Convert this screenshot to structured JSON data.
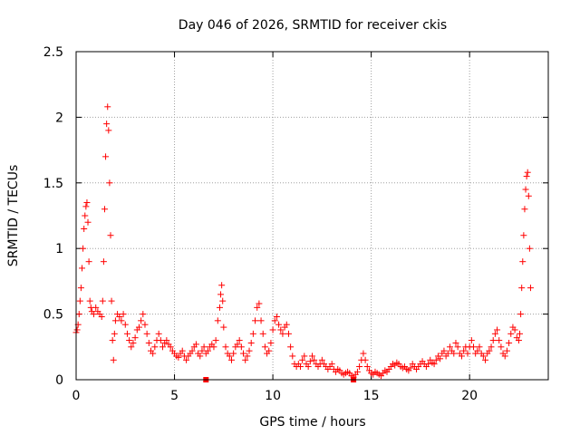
{
  "chart_data": {
    "type": "scatter",
    "title": "Day 046 of 2026, SRMTID for receiver ckis",
    "xlabel": "GPS time / hours",
    "ylabel": "SRMTID / TECUs",
    "xlim": [
      0,
      24
    ],
    "ylim": [
      0,
      2.5
    ],
    "xticks": [
      0,
      5,
      10,
      15,
      20
    ],
    "yticks": [
      0,
      0.5,
      1,
      1.5,
      2,
      2.5
    ],
    "xtick_labels": [
      "0",
      "5",
      "10",
      "15",
      "20"
    ],
    "ytick_labels": [
      "0",
      "0.5",
      "1",
      "1.5",
      "2",
      "2.5"
    ],
    "grid": true,
    "marker": "plus",
    "color": "#ff0000",
    "series": [
      {
        "name": "SRMTID",
        "points": [
          [
            0.0,
            0.36
          ],
          [
            0.05,
            0.38
          ],
          [
            0.1,
            0.42
          ],
          [
            0.15,
            0.5
          ],
          [
            0.2,
            0.6
          ],
          [
            0.25,
            0.7
          ],
          [
            0.3,
            0.85
          ],
          [
            0.35,
            1.0
          ],
          [
            0.4,
            1.15
          ],
          [
            0.45,
            1.25
          ],
          [
            0.5,
            1.32
          ],
          [
            0.55,
            1.35
          ],
          [
            0.6,
            1.2
          ],
          [
            0.65,
            0.9
          ],
          [
            0.7,
            0.6
          ],
          [
            0.75,
            0.55
          ],
          [
            0.8,
            0.52
          ],
          [
            0.9,
            0.5
          ],
          [
            1.0,
            0.55
          ],
          [
            1.1,
            0.52
          ],
          [
            1.2,
            0.5
          ],
          [
            1.3,
            0.48
          ],
          [
            1.35,
            0.6
          ],
          [
            1.4,
            0.9
          ],
          [
            1.45,
            1.3
          ],
          [
            1.5,
            1.7
          ],
          [
            1.55,
            1.95
          ],
          [
            1.6,
            2.08
          ],
          [
            1.65,
            1.9
          ],
          [
            1.7,
            1.5
          ],
          [
            1.75,
            1.1
          ],
          [
            1.8,
            0.6
          ],
          [
            1.85,
            0.3
          ],
          [
            1.9,
            0.15
          ],
          [
            1.95,
            0.35
          ],
          [
            2.0,
            0.45
          ],
          [
            2.1,
            0.5
          ],
          [
            2.2,
            0.48
          ],
          [
            2.3,
            0.45
          ],
          [
            2.4,
            0.5
          ],
          [
            2.5,
            0.42
          ],
          [
            2.6,
            0.35
          ],
          [
            2.7,
            0.3
          ],
          [
            2.8,
            0.25
          ],
          [
            2.9,
            0.28
          ],
          [
            3.0,
            0.32
          ],
          [
            3.1,
            0.38
          ],
          [
            3.2,
            0.4
          ],
          [
            3.3,
            0.45
          ],
          [
            3.4,
            0.5
          ],
          [
            3.5,
            0.42
          ],
          [
            3.6,
            0.35
          ],
          [
            3.7,
            0.28
          ],
          [
            3.8,
            0.22
          ],
          [
            3.9,
            0.2
          ],
          [
            4.0,
            0.25
          ],
          [
            4.1,
            0.3
          ],
          [
            4.2,
            0.35
          ],
          [
            4.3,
            0.3
          ],
          [
            4.4,
            0.25
          ],
          [
            4.5,
            0.28
          ],
          [
            4.6,
            0.3
          ],
          [
            4.7,
            0.27
          ],
          [
            4.8,
            0.25
          ],
          [
            4.9,
            0.22
          ],
          [
            5.0,
            0.2
          ],
          [
            5.1,
            0.18
          ],
          [
            5.2,
            0.17
          ],
          [
            5.3,
            0.2
          ],
          [
            5.4,
            0.22
          ],
          [
            5.5,
            0.18
          ],
          [
            5.6,
            0.15
          ],
          [
            5.7,
            0.18
          ],
          [
            5.8,
            0.2
          ],
          [
            5.9,
            0.22
          ],
          [
            6.0,
            0.25
          ],
          [
            6.1,
            0.27
          ],
          [
            6.2,
            0.2
          ],
          [
            6.3,
            0.18
          ],
          [
            6.4,
            0.22
          ],
          [
            6.5,
            0.25
          ],
          [
            6.6,
            0.2
          ],
          [
            6.7,
            0.22
          ],
          [
            6.8,
            0.25
          ],
          [
            6.9,
            0.27
          ],
          [
            7.0,
            0.25
          ],
          [
            7.1,
            0.3
          ],
          [
            7.2,
            0.45
          ],
          [
            7.3,
            0.55
          ],
          [
            7.35,
            0.65
          ],
          [
            7.4,
            0.72
          ],
          [
            7.45,
            0.6
          ],
          [
            7.5,
            0.4
          ],
          [
            7.6,
            0.25
          ],
          [
            7.7,
            0.2
          ],
          [
            7.8,
            0.18
          ],
          [
            7.9,
            0.15
          ],
          [
            8.0,
            0.2
          ],
          [
            8.1,
            0.25
          ],
          [
            8.2,
            0.27
          ],
          [
            8.3,
            0.3
          ],
          [
            8.4,
            0.25
          ],
          [
            8.5,
            0.2
          ],
          [
            8.6,
            0.15
          ],
          [
            8.7,
            0.18
          ],
          [
            8.8,
            0.22
          ],
          [
            8.9,
            0.28
          ],
          [
            9.0,
            0.35
          ],
          [
            9.1,
            0.45
          ],
          [
            9.2,
            0.55
          ],
          [
            9.3,
            0.58
          ],
          [
            9.4,
            0.45
          ],
          [
            9.5,
            0.35
          ],
          [
            9.6,
            0.25
          ],
          [
            9.7,
            0.2
          ],
          [
            9.8,
            0.22
          ],
          [
            9.9,
            0.28
          ],
          [
            10.0,
            0.38
          ],
          [
            10.1,
            0.45
          ],
          [
            10.2,
            0.48
          ],
          [
            10.3,
            0.42
          ],
          [
            10.4,
            0.38
          ],
          [
            10.5,
            0.35
          ],
          [
            10.6,
            0.4
          ],
          [
            10.7,
            0.42
          ],
          [
            10.8,
            0.35
          ],
          [
            10.9,
            0.25
          ],
          [
            11.0,
            0.18
          ],
          [
            11.1,
            0.12
          ],
          [
            11.2,
            0.1
          ],
          [
            11.3,
            0.12
          ],
          [
            11.4,
            0.1
          ],
          [
            11.5,
            0.15
          ],
          [
            11.6,
            0.18
          ],
          [
            11.7,
            0.12
          ],
          [
            11.8,
            0.1
          ],
          [
            11.9,
            0.14
          ],
          [
            12.0,
            0.18
          ],
          [
            12.1,
            0.15
          ],
          [
            12.2,
            0.12
          ],
          [
            12.3,
            0.1
          ],
          [
            12.4,
            0.12
          ],
          [
            12.5,
            0.15
          ],
          [
            12.6,
            0.12
          ],
          [
            12.7,
            0.1
          ],
          [
            12.8,
            0.08
          ],
          [
            12.9,
            0.1
          ],
          [
            13.0,
            0.12
          ],
          [
            13.1,
            0.08
          ],
          [
            13.2,
            0.06
          ],
          [
            13.3,
            0.08
          ],
          [
            13.4,
            0.07
          ],
          [
            13.5,
            0.05
          ],
          [
            13.6,
            0.04
          ],
          [
            13.7,
            0.05
          ],
          [
            13.8,
            0.06
          ],
          [
            13.9,
            0.05
          ],
          [
            14.0,
            0.03
          ],
          [
            14.1,
            0.02
          ],
          [
            14.2,
            0.04
          ],
          [
            14.3,
            0.06
          ],
          [
            14.4,
            0.1
          ],
          [
            14.5,
            0.15
          ],
          [
            14.6,
            0.2
          ],
          [
            14.7,
            0.15
          ],
          [
            14.8,
            0.1
          ],
          [
            14.9,
            0.07
          ],
          [
            15.0,
            0.05
          ],
          [
            15.1,
            0.04
          ],
          [
            15.2,
            0.06
          ],
          [
            15.3,
            0.05
          ],
          [
            15.4,
            0.04
          ],
          [
            15.5,
            0.03
          ],
          [
            15.6,
            0.05
          ],
          [
            15.7,
            0.07
          ],
          [
            15.8,
            0.06
          ],
          [
            15.9,
            0.08
          ],
          [
            16.0,
            0.1
          ],
          [
            16.1,
            0.12
          ],
          [
            16.2,
            0.11
          ],
          [
            16.3,
            0.13
          ],
          [
            16.4,
            0.12
          ],
          [
            16.5,
            0.1
          ],
          [
            16.6,
            0.09
          ],
          [
            16.7,
            0.1
          ],
          [
            16.8,
            0.08
          ],
          [
            16.9,
            0.07
          ],
          [
            17.0,
            0.09
          ],
          [
            17.1,
            0.12
          ],
          [
            17.2,
            0.1
          ],
          [
            17.3,
            0.08
          ],
          [
            17.4,
            0.1
          ],
          [
            17.5,
            0.12
          ],
          [
            17.6,
            0.14
          ],
          [
            17.7,
            0.12
          ],
          [
            17.8,
            0.1
          ],
          [
            17.9,
            0.12
          ],
          [
            18.0,
            0.15
          ],
          [
            18.1,
            0.13
          ],
          [
            18.2,
            0.12
          ],
          [
            18.3,
            0.15
          ],
          [
            18.4,
            0.18
          ],
          [
            18.5,
            0.16
          ],
          [
            18.6,
            0.2
          ],
          [
            18.7,
            0.22
          ],
          [
            18.8,
            0.18
          ],
          [
            18.9,
            0.2
          ],
          [
            19.0,
            0.25
          ],
          [
            19.1,
            0.22
          ],
          [
            19.2,
            0.2
          ],
          [
            19.3,
            0.28
          ],
          [
            19.4,
            0.25
          ],
          [
            19.5,
            0.2
          ],
          [
            19.6,
            0.18
          ],
          [
            19.7,
            0.22
          ],
          [
            19.8,
            0.25
          ],
          [
            19.9,
            0.2
          ],
          [
            20.0,
            0.25
          ],
          [
            20.1,
            0.3
          ],
          [
            20.2,
            0.25
          ],
          [
            20.3,
            0.2
          ],
          [
            20.4,
            0.22
          ],
          [
            20.5,
            0.25
          ],
          [
            20.6,
            0.2
          ],
          [
            20.7,
            0.18
          ],
          [
            20.8,
            0.15
          ],
          [
            20.9,
            0.2
          ],
          [
            21.0,
            0.22
          ],
          [
            21.1,
            0.25
          ],
          [
            21.2,
            0.3
          ],
          [
            21.3,
            0.35
          ],
          [
            21.4,
            0.38
          ],
          [
            21.5,
            0.3
          ],
          [
            21.6,
            0.25
          ],
          [
            21.7,
            0.2
          ],
          [
            21.8,
            0.18
          ],
          [
            21.9,
            0.22
          ],
          [
            22.0,
            0.28
          ],
          [
            22.1,
            0.35
          ],
          [
            22.2,
            0.4
          ],
          [
            22.3,
            0.38
          ],
          [
            22.4,
            0.32
          ],
          [
            22.5,
            0.3
          ],
          [
            22.55,
            0.35
          ],
          [
            22.6,
            0.5
          ],
          [
            22.65,
            0.7
          ],
          [
            22.7,
            0.9
          ],
          [
            22.75,
            1.1
          ],
          [
            22.8,
            1.3
          ],
          [
            22.85,
            1.45
          ],
          [
            22.9,
            1.55
          ],
          [
            22.95,
            1.58
          ],
          [
            23.0,
            1.4
          ],
          [
            23.05,
            1.0
          ],
          [
            23.1,
            0.7
          ]
        ]
      },
      {
        "name": "outlier",
        "marker": "square",
        "points": [
          [
            6.6,
            0.0
          ],
          [
            14.1,
            0.0
          ]
        ]
      }
    ]
  }
}
